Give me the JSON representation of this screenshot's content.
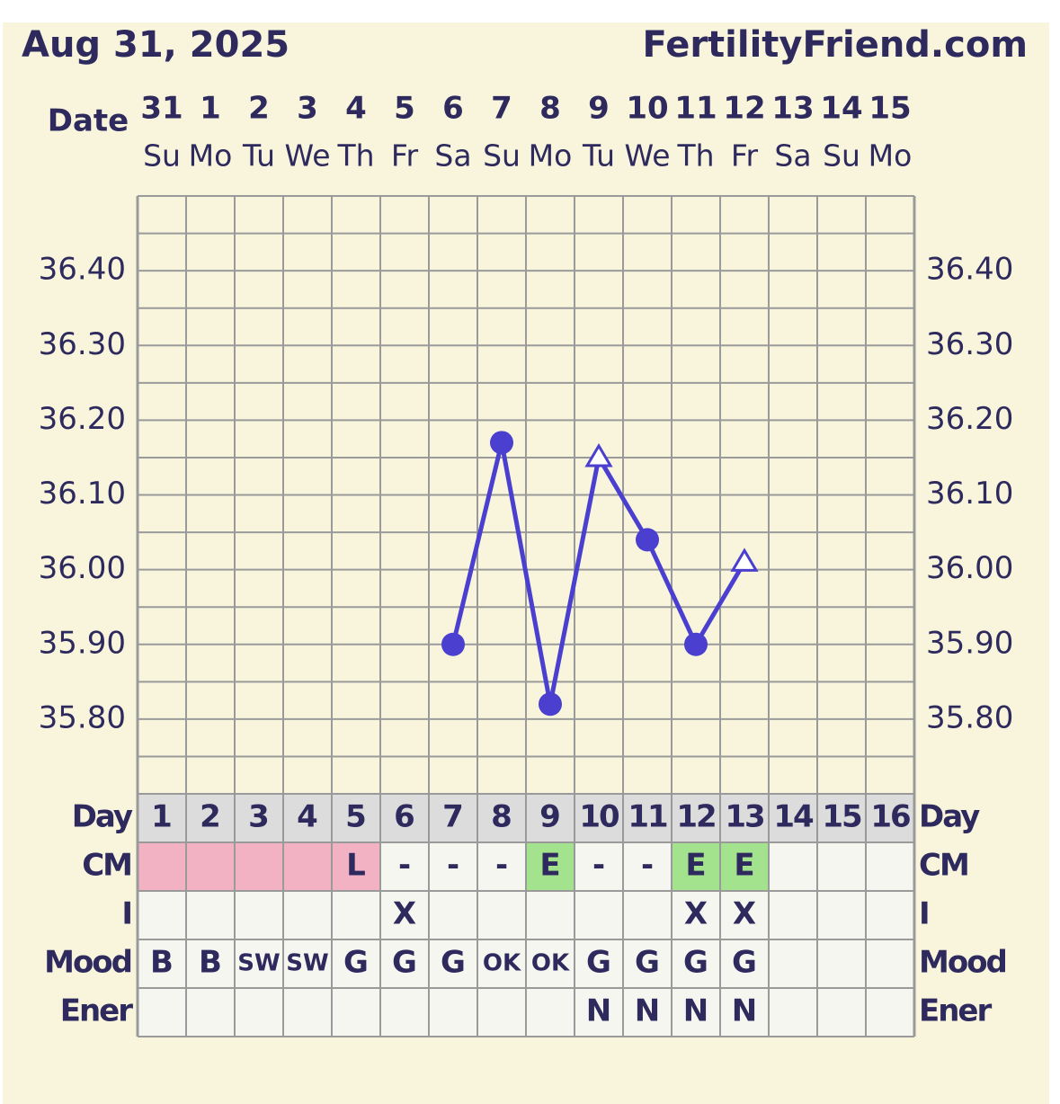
{
  "header": {
    "date": "Aug 31, 2025",
    "site": "FertilityFriend.com",
    "date_label": "Date"
  },
  "chart_data": {
    "type": "line",
    "categories": [
      "31",
      "1",
      "2",
      "3",
      "4",
      "5",
      "6",
      "7",
      "8",
      "9",
      "10",
      "11",
      "12",
      "13",
      "14",
      "15"
    ],
    "weekdays": [
      "Su",
      "Mo",
      "Tu",
      "We",
      "Th",
      "Fr",
      "Sa",
      "Su",
      "Mo",
      "Tu",
      "We",
      "Th",
      "Fr",
      "Sa",
      "Su",
      "Mo"
    ],
    "values": [
      null,
      null,
      null,
      null,
      null,
      null,
      35.9,
      36.17,
      35.82,
      36.15,
      36.04,
      35.9,
      36.01,
      null,
      null,
      null
    ],
    "markers": [
      null,
      null,
      null,
      null,
      null,
      null,
      "circle",
      "circle",
      "circle",
      "triangle",
      "circle",
      "circle",
      "triangle",
      null,
      null,
      null
    ],
    "color": "#4b3fcf",
    "ylim": [
      35.7,
      36.5
    ],
    "yticks": [
      {
        "value": 35.8,
        "label": "35.80"
      },
      {
        "value": 35.9,
        "label": "35.90"
      },
      {
        "value": 36.0,
        "label": "36.00"
      },
      {
        "value": 36.1,
        "label": "36.10"
      },
      {
        "value": 36.2,
        "label": "36.20"
      },
      {
        "value": 36.3,
        "label": "36.30"
      },
      {
        "value": 36.4,
        "label": "36.40"
      }
    ],
    "minor_yticks": [
      35.7,
      35.75,
      35.85,
      35.95,
      36.05,
      36.15,
      36.25,
      36.35,
      36.45,
      36.5
    ],
    "grid": true
  },
  "table": {
    "row_labels": [
      "Day",
      "CM",
      "I",
      "Mood",
      "Ener"
    ],
    "rows": [
      [
        "1",
        "2",
        "3",
        "4",
        "5",
        "6",
        "7",
        "8",
        "9",
        "10",
        "11",
        "12",
        "13",
        "14",
        "15",
        "16"
      ],
      [
        null,
        null,
        null,
        null,
        "L",
        "-",
        "-",
        "-",
        "E",
        "-",
        "-",
        "E",
        "E",
        null,
        null,
        null
      ],
      [
        null,
        null,
        null,
        null,
        null,
        "X",
        null,
        null,
        null,
        null,
        null,
        "X",
        "X",
        null,
        null,
        null
      ],
      [
        "B",
        "B",
        "SW",
        "SW",
        "G",
        "G",
        "G",
        "OK",
        "OK",
        "G",
        "G",
        "G",
        "G",
        null,
        null,
        null
      ],
      [
        null,
        null,
        null,
        null,
        null,
        null,
        null,
        null,
        null,
        "N",
        "N",
        "N",
        "N",
        null,
        null,
        null
      ]
    ],
    "cm_colors": [
      "#f3b2c4",
      "#f3b2c4",
      "#f3b2c4",
      "#f3b2c4",
      "#f3b2c4",
      null,
      null,
      null,
      "#a4e38e",
      null,
      null,
      "#a4e38e",
      "#a4e38e",
      null,
      null,
      null
    ]
  }
}
